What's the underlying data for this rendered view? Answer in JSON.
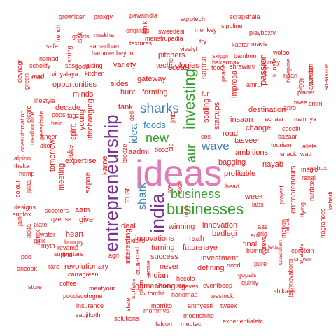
{
  "colors": {
    "red": "#e31a1c",
    "purple": "#7b3294",
    "pink": "#e37ab8",
    "green": "#33a02c",
    "blue": "#3b7fb8",
    "dark_red": "#b2182b"
  },
  "words": [
    {
      "text": "ideas",
      "color": "pink"
    },
    {
      "text": "entrepreneurship",
      "color": "purple"
    },
    {
      "text": "india",
      "color": "purple"
    },
    {
      "text": "businesses",
      "color": "green"
    },
    {
      "text": "investing",
      "color": "green"
    },
    {
      "text": "business",
      "color": "green"
    },
    {
      "text": "sharks",
      "color": "blue"
    },
    {
      "text": "shark",
      "color": "blue"
    },
    {
      "text": "new",
      "color": "green"
    },
    {
      "text": "idea",
      "color": "blue"
    },
    {
      "text": "wave",
      "color": "blue"
    },
    {
      "text": "aur",
      "color": "green"
    },
    {
      "text": "foods",
      "color": "blue"
    },
    {
      "text": "growfitter",
      "color": "red"
    },
    {
      "text": "proxgy",
      "color": "red"
    },
    {
      "text": "pawsindia",
      "color": "red"
    },
    {
      "text": "agrotech",
      "color": "red"
    },
    {
      "text": "scrapshala",
      "color": "red"
    },
    {
      "text": "french",
      "color": "red"
    },
    {
      "text": "goods",
      "color": "red"
    },
    {
      "text": "nuskha",
      "color": "red"
    },
    {
      "text": "originals",
      "color": "red"
    },
    {
      "text": "sweedesi",
      "color": "red"
    },
    {
      "text": "monkey",
      "color": "red"
    },
    {
      "text": "sippline",
      "color": "red"
    },
    {
      "text": "playboxtv",
      "color": "red"
    },
    {
      "text": "safe",
      "color": "red"
    },
    {
      "text": "samadhan",
      "color": "red"
    },
    {
      "text": "ethik",
      "color": "red"
    },
    {
      "text": "menstrupedia",
      "color": "red"
    },
    {
      "text": "try",
      "color": "red"
    },
    {
      "text": "mavis",
      "color": "red"
    },
    {
      "text": "isak",
      "color": "red"
    },
    {
      "text": "textures",
      "color": "red"
    },
    {
      "text": "vivalyf",
      "color": "red"
    },
    {
      "text": "kaatar",
      "color": "red"
    },
    {
      "text": "hammer",
      "color": "red"
    },
    {
      "text": "beyond",
      "color": "red"
    },
    {
      "text": "skippi",
      "color": "red"
    },
    {
      "text": "bamboo",
      "color": "red"
    },
    {
      "text": "woloo",
      "color": "red"
    },
    {
      "text": "nomad",
      "color": "red"
    },
    {
      "text": "spring",
      "color": "red"
    },
    {
      "text": "good",
      "color": "red"
    },
    {
      "text": "time",
      "color": "red"
    },
    {
      "text": "pitchers",
      "color": "red"
    },
    {
      "text": "bakarmax",
      "color": "red"
    },
    {
      "text": "humpy",
      "color": "red"
    },
    {
      "text": "scholify",
      "color": "red"
    },
    {
      "text": "sass",
      "color": "red"
    },
    {
      "text": "raising",
      "color": "red"
    },
    {
      "text": "variety",
      "color": "red"
    },
    {
      "text": "ocean",
      "color": "red"
    },
    {
      "text": "sapna",
      "color": "red"
    },
    {
      "text": "food",
      "color": "red"
    },
    {
      "text": "shrawani",
      "color": "red"
    },
    {
      "text": "devnagri",
      "color": "red"
    },
    {
      "text": "vidyalaya",
      "color": "red"
    },
    {
      "text": "kitchen",
      "color": "red"
    },
    {
      "text": "naari",
      "color": "red"
    },
    {
      "text": "mad",
      "color": "red"
    },
    {
      "text": "opportunities",
      "color": "red"
    },
    {
      "text": "sides",
      "color": "red"
    },
    {
      "text": "gateway",
      "color": "red"
    },
    {
      "text": "paane",
      "color": "red"
    },
    {
      "text": "passion",
      "color": "red"
    },
    {
      "text": "kunafa",
      "color": "red"
    },
    {
      "text": "ayurythm",
      "color": "red"
    },
    {
      "text": "sneakare",
      "color": "red"
    },
    {
      "text": "green",
      "color": "red"
    },
    {
      "text": "minds",
      "color": "red"
    },
    {
      "text": "hunt",
      "color": "red"
    },
    {
      "text": "forming",
      "color": "red"
    },
    {
      "text": "impresa",
      "color": "red"
    },
    {
      "text": "planet",
      "color": "red"
    },
    {
      "text": "lifestyle",
      "color": "red"
    },
    {
      "text": "decade",
      "color": "red"
    },
    {
      "text": "tank",
      "color": "red"
    },
    {
      "text": "twee",
      "color": "red"
    },
    {
      "text": "cmm",
      "color": "red"
    },
    {
      "text": "pops",
      "color": "red"
    },
    {
      "text": "tagz",
      "color": "red"
    },
    {
      "text": "destination",
      "color": "red"
    },
    {
      "text": "elcare",
      "color": "red"
    },
    {
      "text": "young",
      "color": "red"
    },
    {
      "text": "lifechanging",
      "color": "red"
    },
    {
      "text": "scaling",
      "color": "red"
    },
    {
      "text": "startups",
      "color": "red"
    },
    {
      "text": "insaan",
      "color": "red"
    },
    {
      "text": "achaar",
      "color": "red"
    },
    {
      "text": "namhya",
      "color": "red"
    },
    {
      "text": "hair",
      "color": "red"
    },
    {
      "text": "spirit",
      "color": "red"
    },
    {
      "text": "change",
      "color": "red"
    },
    {
      "text": "cocofit",
      "color": "red"
    },
    {
      "text": "uske",
      "color": "red"
    },
    {
      "text": "aadmi",
      "color": "red"
    },
    {
      "text": "booz",
      "color": "red"
    },
    {
      "text": "road",
      "color": "red"
    },
    {
      "text": "bazaar",
      "color": "red"
    },
    {
      "text": "tasveer",
      "color": "red"
    },
    {
      "text": "tourism",
      "color": "red"
    },
    {
      "text": "kheer",
      "color": "red"
    },
    {
      "text": "ambitions",
      "color": "red"
    },
    {
      "text": "snack",
      "color": "red"
    },
    {
      "text": "watt",
      "color": "red"
    },
    {
      "text": "aliste",
      "color": "red"
    },
    {
      "text": "expertise",
      "color": "red"
    },
    {
      "text": "karne",
      "color": "red"
    },
    {
      "text": "bagging",
      "color": "red"
    },
    {
      "text": "nayab",
      "color": "red"
    },
    {
      "text": "magic",
      "color": "red"
    },
    {
      "text": "theka",
      "color": "red"
    },
    {
      "text": "tomorrow",
      "color": "red"
    },
    {
      "text": "alpino",
      "color": "red"
    },
    {
      "text": "profitable",
      "color": "red"
    },
    {
      "text": "renal",
      "color": "red"
    },
    {
      "text": "hemp",
      "color": "red"
    },
    {
      "text": "meeting",
      "color": "red"
    },
    {
      "text": "head",
      "color": "red"
    },
    {
      "text": "week",
      "color": "red"
    },
    {
      "text": "sapne",
      "color": "red"
    },
    {
      "text": "trust",
      "color": "red"
    },
    {
      "text": "labs",
      "color": "red"
    },
    {
      "text": "designs",
      "color": "red"
    },
    {
      "text": "aam",
      "color": "red"
    },
    {
      "text": "entrepreneurs",
      "color": "red"
    },
    {
      "text": "sunfox",
      "color": "red"
    },
    {
      "text": "scooters",
      "color": "red"
    },
    {
      "text": "kabadi",
      "color": "red"
    },
    {
      "text": "give",
      "color": "red"
    },
    {
      "text": "deal",
      "color": "red"
    },
    {
      "text": "winning",
      "color": "red"
    },
    {
      "text": "innovation",
      "color": "red"
    },
    {
      "text": "motion",
      "color": "red"
    },
    {
      "text": "qzense",
      "color": "red"
    },
    {
      "text": "heart",
      "color": "red"
    },
    {
      "text": "innovations",
      "color": "red"
    },
    {
      "text": "raah",
      "color": "red"
    },
    {
      "text": "badlegi",
      "color": "red"
    },
    {
      "text": "water",
      "color": "red"
    },
    {
      "text": "pink",
      "color": "red"
    },
    {
      "text": "myth",
      "color": "red"
    },
    {
      "text": "hungry",
      "color": "red"
    },
    {
      "text": "success",
      "color": "red"
    },
    {
      "text": "naye",
      "color": "red"
    },
    {
      "text": "final",
      "color": "red"
    },
    {
      "text": "turning",
      "color": "red"
    },
    {
      "text": "future",
      "color": "red"
    },
    {
      "text": "revolutionary",
      "color": "red"
    },
    {
      "text": "investment",
      "color": "red"
    },
    {
      "text": "superstars",
      "color": "red"
    },
    {
      "text": "never",
      "color": "red"
    },
    {
      "text": "defining",
      "color": "red"
    },
    {
      "text": "bummer",
      "color": "red"
    },
    {
      "text": "eprotein",
      "color": "red"
    },
    {
      "text": "oncook",
      "color": "red"
    },
    {
      "text": "rare",
      "color": "red"
    },
    {
      "text": "carragreen",
      "color": "red"
    },
    {
      "text": "indian",
      "color": "red"
    },
    {
      "text": "gamechanging",
      "color": "red"
    },
    {
      "text": "nocd",
      "color": "red"
    },
    {
      "text": "gopals",
      "color": "red"
    },
    {
      "text": "crown",
      "color": "red"
    },
    {
      "text": "store",
      "color": "red"
    },
    {
      "text": "coffee",
      "color": "red"
    },
    {
      "text": "meatyour",
      "color": "red"
    },
    {
      "text": "hecolo",
      "color": "red"
    },
    {
      "text": "eventbeep",
      "color": "red"
    },
    {
      "text": "quirky",
      "color": "red"
    },
    {
      "text": "shikanji",
      "color": "red"
    },
    {
      "text": "poodecologne",
      "color": "red"
    },
    {
      "text": "torchit",
      "color": "red"
    },
    {
      "text": "handmad",
      "color": "red"
    },
    {
      "text": "westock",
      "color": "red"
    },
    {
      "text": "insurance",
      "color": "red"
    },
    {
      "text": "morriko",
      "color": "red"
    },
    {
      "text": "anthyesti",
      "color": "red"
    },
    {
      "text": "tweek",
      "color": "red"
    },
    {
      "text": "sabjikothi",
      "color": "red"
    },
    {
      "text": "mommys",
      "color": "red"
    },
    {
      "text": "solutions",
      "color": "red"
    },
    {
      "text": "moonshine",
      "color": "red"
    },
    {
      "text": "falcon",
      "color": "red"
    },
    {
      "text": "medtech",
      "color": "red"
    },
    {
      "text": "experientialetc",
      "color": "red"
    },
    {
      "text": "dell",
      "color": "red"
    },
    {
      "text": "sid",
      "color": "red"
    },
    {
      "text": "breeze",
      "color": "red"
    },
    {
      "text": "kicks",
      "color": "red"
    },
    {
      "text": "agri",
      "color": "red"
    },
    {
      "text": "interesting",
      "color": "red"
    },
    {
      "text": "annie",
      "color": "red"
    },
    {
      "text": "ice",
      "color": "red"
    },
    {
      "text": "loka",
      "color": "red"
    },
    {
      "text": "cos",
      "color": "red"
    },
    {
      "text": "fur",
      "color": "red"
    },
    {
      "text": "technologies",
      "color": "red"
    },
    {
      "text": "aaruka",
      "color": "red"
    },
    {
      "text": "revamp",
      "color": "red"
    },
    {
      "text": "adda",
      "color": "red"
    },
    {
      "text": "jain",
      "color": "red"
    },
    {
      "text": "plate",
      "color": "red"
    },
    {
      "text": "find",
      "color": "red"
    },
    {
      "text": "aas",
      "color": "red"
    },
    {
      "text": "aul",
      "color": "red"
    },
    {
      "text": "lets",
      "color": "red"
    },
    {
      "text": "outbox",
      "color": "red"
    },
    {
      "text": "nutrbox",
      "color": "red"
    },
    {
      "text": "flying",
      "color": "red"
    },
    {
      "text": "project",
      "color": "red"
    },
    {
      "text": "fragrances",
      "color": "red"
    },
    {
      "text": "technovations",
      "color": "red"
    },
    {
      "text": "guardian",
      "color": "red"
    },
    {
      "text": "shades",
      "color": "red"
    },
    {
      "text": "pure",
      "color": "red"
    },
    {
      "text": "pdd",
      "color": "red"
    },
    {
      "text": "state",
      "color": "red"
    },
    {
      "text": "otua",
      "color": "red"
    },
    {
      "text": "urban",
      "color": "red"
    },
    {
      "text": "sleeves",
      "color": "red"
    },
    {
      "text": "colour",
      "color": "red"
    },
    {
      "text": "julaa",
      "color": "red"
    },
    {
      "text": "oneautomation",
      "color": "red"
    },
    {
      "text": "roadbounce",
      "color": "red"
    },
    {
      "text": "peeschute",
      "color": "red"
    },
    {
      "text": "altor",
      "color": "red"
    },
    {
      "text": "ariro",
      "color": "red"
    },
    {
      "text": "bluepine",
      "color": "red"
    },
    {
      "text": "piggy",
      "color": "red"
    },
    {
      "text": "mad",
      "color": "red"
    },
    {
      "text": "astrix",
      "color": "red"
    },
    {
      "text": "ghum",
      "color": "red"
    },
    {
      "text": "sacred",
      "color": "red"
    },
    {
      "text": "surface",
      "color": "red"
    },
    {
      "text": "cureya",
      "color": "red"
    },
    {
      "text": "drip",
      "color": "red"
    },
    {
      "text": "tush",
      "color": "red"
    },
    {
      "text": "grig",
      "color": "red"
    },
    {
      "text": "farda",
      "color": "red"
    },
    {
      "text": "amrut",
      "color": "red"
    },
    {
      "text": "jmb",
      "color": "red"
    }
  ]
}
